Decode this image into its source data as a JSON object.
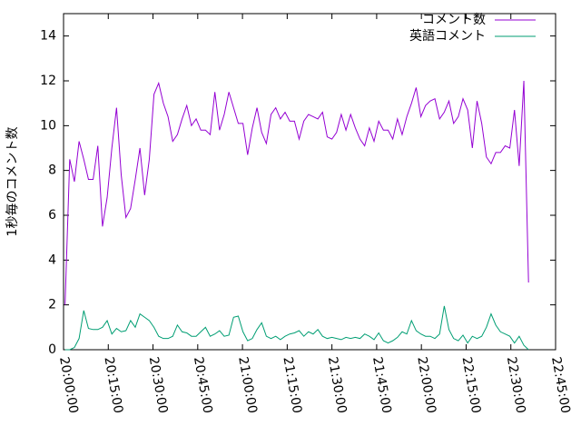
{
  "chart_data": {
    "type": "line",
    "ylabel": "1秒毎のコメント数",
    "legend": "top-right",
    "xlim": [
      0,
      165
    ],
    "ylim": [
      0,
      15
    ],
    "yticks": [
      0,
      2,
      4,
      6,
      8,
      10,
      12,
      14
    ],
    "xticks": [
      {
        "value": 0,
        "label": "20:00:00"
      },
      {
        "value": 15,
        "label": "20:15:00"
      },
      {
        "value": 30,
        "label": "20:30:00"
      },
      {
        "value": 45,
        "label": "20:45:00"
      },
      {
        "value": 60,
        "label": "21:00:00"
      },
      {
        "value": 75,
        "label": "21:15:00"
      },
      {
        "value": 90,
        "label": "21:30:00"
      },
      {
        "value": 105,
        "label": "21:45:00"
      },
      {
        "value": 120,
        "label": "22:00:00"
      },
      {
        "value": 135,
        "label": "22:15:00"
      },
      {
        "value": 150,
        "label": "22:30:00"
      },
      {
        "value": 165,
        "label": "22:45:00"
      }
    ],
    "x": [
      0.5,
      2.07,
      3.64,
      5.21,
      6.78,
      8.35,
      9.92,
      11.49,
      13.06,
      14.63,
      16.2,
      17.77,
      19.34,
      20.91,
      22.48,
      24.05,
      25.62,
      27.19,
      28.76,
      30.33,
      31.9,
      33.47,
      35.04,
      36.61,
      38.18,
      39.75,
      41.32,
      42.89,
      44.46,
      46.03,
      47.6,
      49.17,
      50.74,
      52.31,
      53.88,
      55.45,
      57.02,
      58.59,
      60.16,
      61.73,
      63.3,
      64.87,
      66.44,
      68.01,
      69.58,
      71.15,
      72.72,
      74.29,
      75.86,
      77.43,
      79,
      80.57,
      82.14,
      83.71,
      85.28,
      86.85,
      88.42,
      89.99,
      91.56,
      93.13,
      94.7,
      96.27,
      97.84,
      99.41,
      100.98,
      102.55,
      104.12,
      105.69,
      107.26,
      108.83,
      110.4,
      111.97,
      113.54,
      115.11,
      116.68,
      118.25,
      119.82,
      121.39,
      122.96,
      124.53,
      126.1,
      127.67,
      129.24,
      130.81,
      132.38,
      133.95,
      135.52,
      137.09,
      138.66,
      140.23,
      141.8,
      143.37,
      144.94,
      146.51,
      148.08,
      149.65,
      151.22,
      152.79,
      154.36,
      155.93
    ],
    "series": [
      {
        "name": "コメント数",
        "color": "#9400d3",
        "values": [
          2.0,
          8.5,
          7.5,
          9.3,
          8.5,
          7.6,
          7.6,
          9.1,
          5.5,
          6.8,
          9.0,
          10.8,
          7.8,
          5.9,
          6.3,
          7.6,
          9.0,
          6.9,
          8.5,
          11.4,
          11.9,
          11.0,
          10.4,
          9.3,
          9.6,
          10.3,
          10.9,
          10.0,
          10.3,
          9.8,
          9.8,
          9.6,
          11.5,
          9.8,
          10.5,
          11.5,
          10.8,
          10.1,
          10.1,
          8.7,
          9.9,
          10.8,
          9.7,
          9.2,
          10.5,
          10.8,
          10.3,
          10.6,
          10.2,
          10.2,
          9.4,
          10.2,
          10.5,
          10.4,
          10.3,
          10.6,
          9.5,
          9.4,
          9.7,
          10.5,
          9.8,
          10.5,
          9.9,
          9.4,
          9.1,
          9.9,
          9.3,
          10.2,
          9.8,
          9.8,
          9.4,
          10.3,
          9.6,
          10.4,
          11.0,
          11.7,
          10.4,
          10.9,
          11.1,
          11.2,
          10.3,
          10.6,
          11.1,
          10.1,
          10.4,
          11.2,
          10.7,
          9.0,
          11.1,
          10.1,
          8.6,
          8.3,
          8.8,
          8.8,
          9.1,
          9.0,
          10.7,
          8.2,
          12.0,
          3.0
        ]
      },
      {
        "name": "英語コメント",
        "color": "#009e73",
        "values": [
          0,
          0,
          0.1,
          0.5,
          1.75,
          0.95,
          0.9,
          0.9,
          1.0,
          1.3,
          0.7,
          0.95,
          0.8,
          0.85,
          1.3,
          1.0,
          1.6,
          1.45,
          1.3,
          1.0,
          0.6,
          0.5,
          0.5,
          0.6,
          1.1,
          0.8,
          0.75,
          0.6,
          0.6,
          0.8,
          1.0,
          0.6,
          0.7,
          0.85,
          0.6,
          0.65,
          1.45,
          1.5,
          0.8,
          0.4,
          0.5,
          0.9,
          1.2,
          0.6,
          0.5,
          0.6,
          0.45,
          0.6,
          0.7,
          0.75,
          0.85,
          0.6,
          0.8,
          0.7,
          0.9,
          0.6,
          0.5,
          0.55,
          0.5,
          0.45,
          0.55,
          0.5,
          0.55,
          0.5,
          0.7,
          0.6,
          0.45,
          0.75,
          0.4,
          0.3,
          0.4,
          0.55,
          0.8,
          0.7,
          1.3,
          0.85,
          0.7,
          0.6,
          0.6,
          0.5,
          0.7,
          1.95,
          0.9,
          0.5,
          0.4,
          0.65,
          0.3,
          0.6,
          0.5,
          0.6,
          1.0,
          1.6,
          1.1,
          0.8,
          0.7,
          0.6,
          0.3,
          0.6,
          0.2,
          0
        ]
      }
    ]
  }
}
